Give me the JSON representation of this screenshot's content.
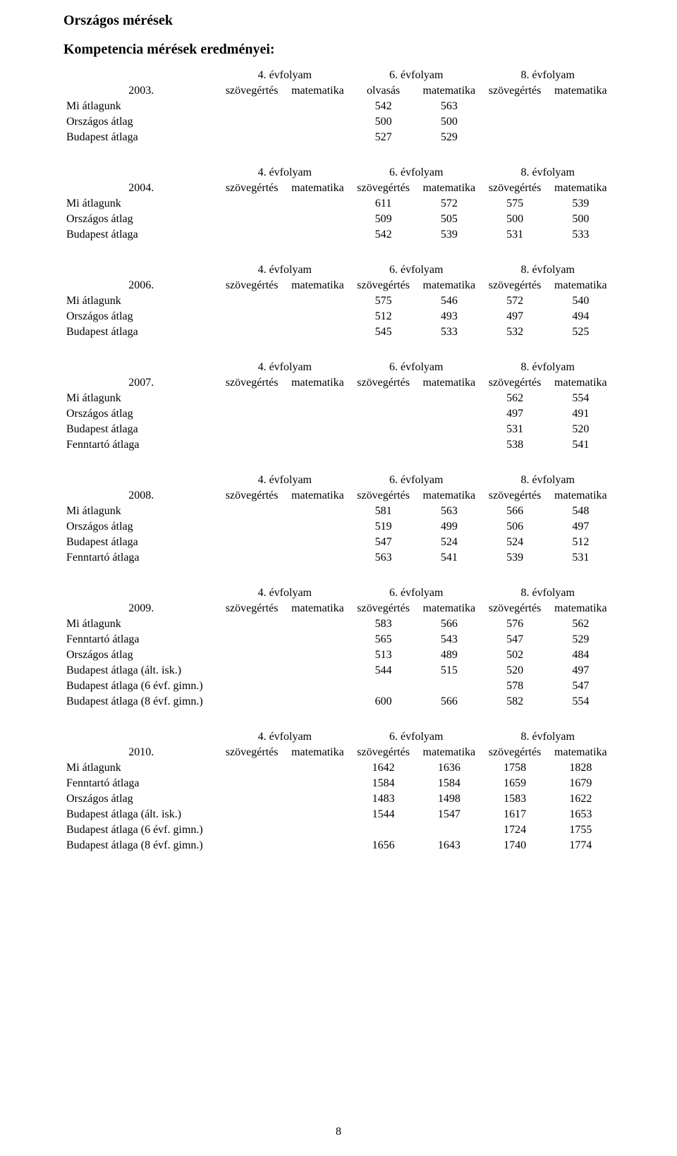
{
  "title": "Országos mérések",
  "subtitle": "Kompetencia mérések eredményei:",
  "grade_labels": {
    "g4": "4. évfolyam",
    "g6": "6. évfolyam",
    "g8": "8. évfolyam"
  },
  "subject_labels": {
    "szoveg": "szövegértés",
    "mat": "matematika",
    "olvasas": "olvasás"
  },
  "page_number": "8",
  "tables": [
    {
      "year": "2003.",
      "header_subjects": [
        "szoveg",
        "mat",
        "olvasas",
        "mat",
        "szoveg",
        "mat"
      ],
      "rows": [
        {
          "label": "Mi átlagunk",
          "v": [
            "",
            "",
            "542",
            "563",
            "",
            ""
          ]
        },
        {
          "label": "Országos átlag",
          "v": [
            "",
            "",
            "500",
            "500",
            "",
            ""
          ]
        },
        {
          "label": "Budapest átlaga",
          "v": [
            "",
            "",
            "527",
            "529",
            "",
            ""
          ]
        }
      ]
    },
    {
      "year": "2004.",
      "header_subjects": [
        "szoveg",
        "mat",
        "szoveg",
        "mat",
        "szoveg",
        "mat"
      ],
      "rows": [
        {
          "label": "Mi átlagunk",
          "v": [
            "",
            "",
            "611",
            "572",
            "575",
            "539"
          ]
        },
        {
          "label": "Országos átlag",
          "v": [
            "",
            "",
            "509",
            "505",
            "500",
            "500"
          ]
        },
        {
          "label": "Budapest átlaga",
          "v": [
            "",
            "",
            "542",
            "539",
            "531",
            "533"
          ]
        }
      ]
    },
    {
      "year": "2006.",
      "header_subjects": [
        "szoveg",
        "mat",
        "szoveg",
        "mat",
        "szoveg",
        "mat"
      ],
      "rows": [
        {
          "label": "Mi átlagunk",
          "v": [
            "",
            "",
            "575",
            "546",
            "572",
            "540"
          ]
        },
        {
          "label": "Országos átlag",
          "v": [
            "",
            "",
            "512",
            "493",
            "497",
            "494"
          ]
        },
        {
          "label": "Budapest átlaga",
          "v": [
            "",
            "",
            "545",
            "533",
            "532",
            "525"
          ]
        }
      ]
    },
    {
      "year": "2007.",
      "header_subjects": [
        "szoveg",
        "mat",
        "szoveg",
        "mat",
        "szoveg",
        "mat"
      ],
      "rows": [
        {
          "label": "Mi átlagunk",
          "v": [
            "",
            "",
            "",
            "",
            "562",
            "554"
          ]
        },
        {
          "label": "Országos átlag",
          "v": [
            "",
            "",
            "",
            "",
            "497",
            "491"
          ]
        },
        {
          "label": "Budapest átlaga",
          "v": [
            "",
            "",
            "",
            "",
            "531",
            "520"
          ]
        },
        {
          "label": "Fenntartó átlaga",
          "v": [
            "",
            "",
            "",
            "",
            "538",
            "541"
          ]
        }
      ]
    },
    {
      "year": "2008.",
      "header_subjects": [
        "szoveg",
        "mat",
        "szoveg",
        "mat",
        "szoveg",
        "mat"
      ],
      "rows": [
        {
          "label": "Mi átlagunk",
          "v": [
            "",
            "",
            "581",
            "563",
            "566",
            "548"
          ]
        },
        {
          "label": "Országos átlag",
          "v": [
            "",
            "",
            "519",
            "499",
            "506",
            "497"
          ]
        },
        {
          "label": "Budapest átlaga",
          "v": [
            "",
            "",
            "547",
            "524",
            "524",
            "512"
          ]
        },
        {
          "label": "Fenntartó átlaga",
          "v": [
            "",
            "",
            "563",
            "541",
            "539",
            "531"
          ]
        }
      ]
    },
    {
      "year": "2009.",
      "header_subjects": [
        "szoveg",
        "mat",
        "szoveg",
        "mat",
        "szoveg",
        "mat"
      ],
      "rows": [
        {
          "label": "Mi átlagunk",
          "v": [
            "",
            "",
            "583",
            "566",
            "576",
            "562"
          ]
        },
        {
          "label": "Fenntartó átlaga",
          "v": [
            "",
            "",
            "565",
            "543",
            "547",
            "529"
          ]
        },
        {
          "label": "Országos átlag",
          "v": [
            "",
            "",
            "513",
            "489",
            "502",
            "484"
          ]
        },
        {
          "label": "Budapest átlaga (ált. isk.)",
          "v": [
            "",
            "",
            "544",
            "515",
            "520",
            "497"
          ]
        },
        {
          "label": "Budapest átlaga (6 évf. gimn.)",
          "v": [
            "",
            "",
            "",
            "",
            "578",
            "547"
          ]
        },
        {
          "label": "Budapest átlaga (8 évf. gimn.)",
          "v": [
            "",
            "",
            "600",
            "566",
            "582",
            "554"
          ]
        }
      ]
    },
    {
      "year": "2010.",
      "header_subjects": [
        "szoveg",
        "mat",
        "szoveg",
        "mat",
        "szoveg",
        "mat"
      ],
      "rows": [
        {
          "label": "Mi átlagunk",
          "v": [
            "",
            "",
            "1642",
            "1636",
            "1758",
            "1828"
          ]
        },
        {
          "label": "Fenntartó átlaga",
          "v": [
            "",
            "",
            "1584",
            "1584",
            "1659",
            "1679"
          ]
        },
        {
          "label": "Országos átlag",
          "v": [
            "",
            "",
            "1483",
            "1498",
            "1583",
            "1622"
          ]
        },
        {
          "label": "Budapest átlaga (ált. isk.)",
          "v": [
            "",
            "",
            "1544",
            "1547",
            "1617",
            "1653"
          ]
        },
        {
          "label": "Budapest átlaga (6 évf. gimn.)",
          "v": [
            "",
            "",
            "",
            "",
            "1724",
            "1755"
          ]
        },
        {
          "label": "Budapest átlaga (8 évf. gimn.)",
          "v": [
            "",
            "",
            "1656",
            "1643",
            "1740",
            "1774"
          ]
        }
      ]
    }
  ]
}
